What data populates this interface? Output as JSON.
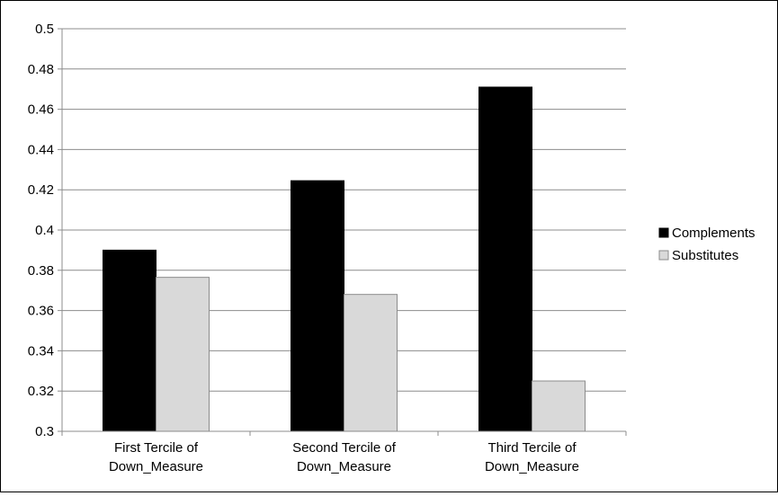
{
  "chart_data": {
    "type": "bar",
    "categories": [
      [
        "First Tercile of",
        "Down_Measure"
      ],
      [
        "Second Tercile of",
        "Down_Measure"
      ],
      [
        "Third Tercile of",
        "Down_Measure"
      ]
    ],
    "series": [
      {
        "name": "Complements",
        "values": [
          0.39,
          0.4245,
          0.471
        ],
        "color": "#000000"
      },
      {
        "name": "Substitutes",
        "values": [
          0.3765,
          0.368,
          0.325
        ],
        "color": "#d9d9d9"
      }
    ],
    "ylim": [
      0.3,
      0.5
    ],
    "yticks": [
      "0.3",
      "0.32",
      "0.34",
      "0.36",
      "0.38",
      "0.4",
      "0.42",
      "0.44",
      "0.46",
      "0.48",
      "0.5"
    ],
    "grid": true,
    "legend_position": "right"
  }
}
